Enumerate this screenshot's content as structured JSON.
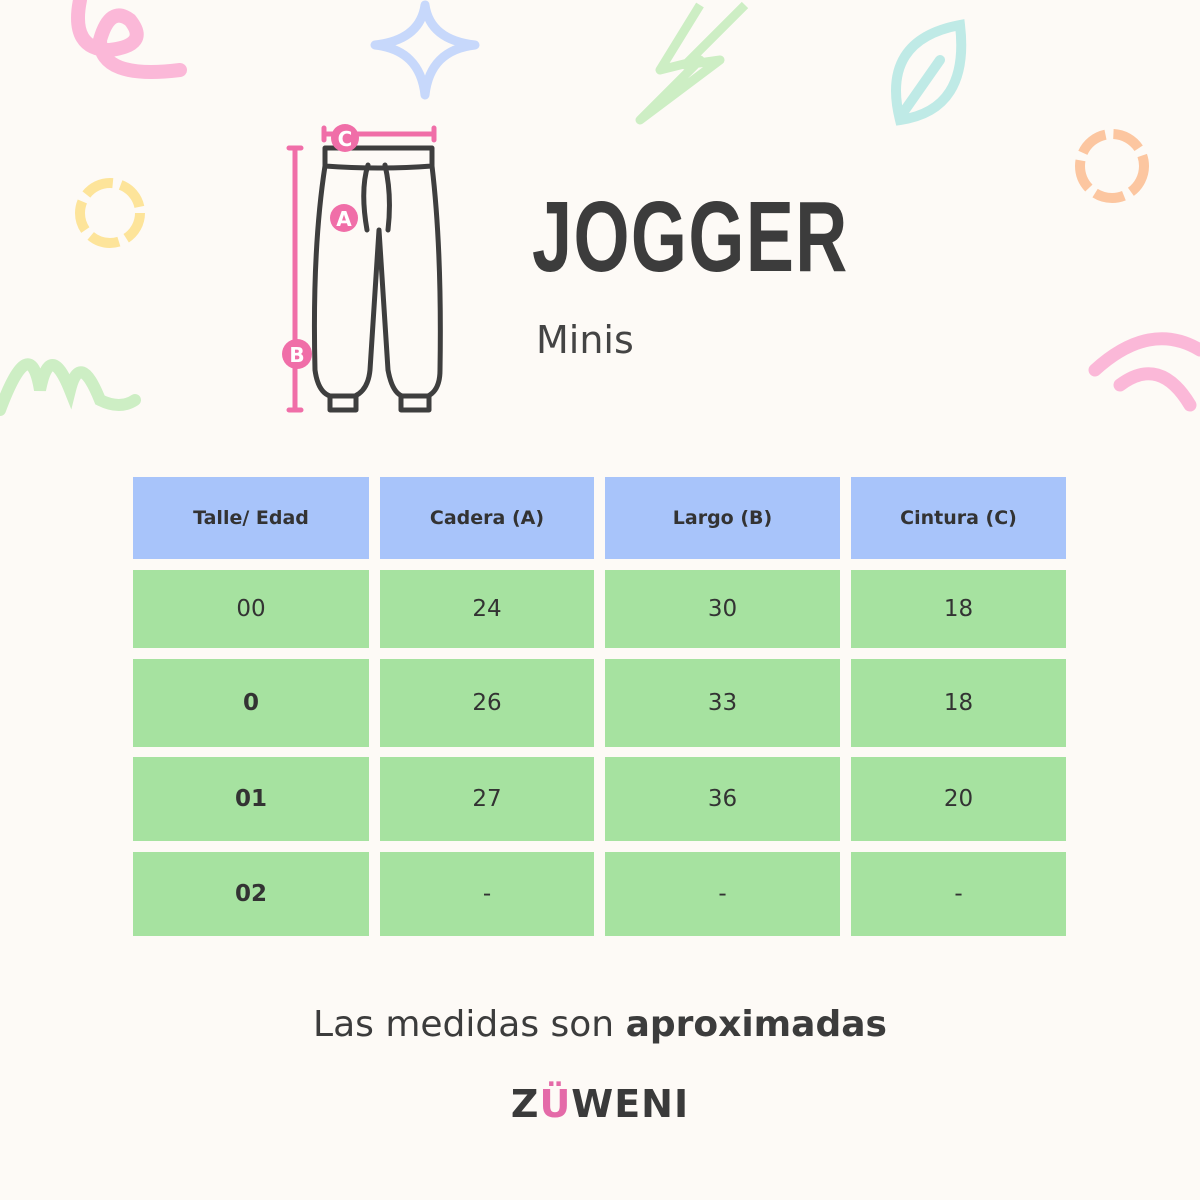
{
  "title": "JOGGER",
  "subtitle": "Minis",
  "diagram_labels": {
    "a": "A",
    "b": "B",
    "c": "C"
  },
  "colors": {
    "header": "#a8c4fa",
    "row": "#a6e2a0",
    "accent": "#f06ea8",
    "text": "#3c3c3c"
  },
  "table": {
    "headers": [
      "Talle/ Edad",
      "Cadera (A)",
      "Largo (B)",
      "Cintura (C)"
    ],
    "rows": [
      [
        "00",
        "24",
        "30",
        "18"
      ],
      [
        "0",
        "26",
        "33",
        "18"
      ],
      [
        "01",
        "27",
        "36",
        "20"
      ],
      [
        "02",
        "-",
        "-",
        "-"
      ]
    ]
  },
  "note": {
    "regular": "Las medidas son ",
    "bold": "aproximadas"
  },
  "logo": {
    "pre": "Z",
    "u": "Ü",
    "post": "WENI"
  }
}
